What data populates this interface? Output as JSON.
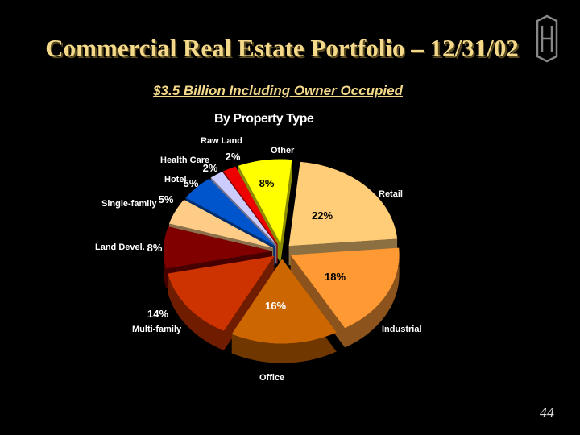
{
  "title": "Commercial Real Estate Portfolio – 12/31/02",
  "subtitle": "$3.5 Billion Including Owner Occupied",
  "page_number": "44",
  "chart_data": {
    "type": "pie",
    "title": "By Property Type",
    "slices": [
      {
        "label": "Retail",
        "value": 22,
        "pct_label": "22%",
        "color": "#FFCC77"
      },
      {
        "label": "Industrial",
        "value": 18,
        "pct_label": "18%",
        "color": "#FF9933"
      },
      {
        "label": "Office",
        "value": 16,
        "pct_label": "16%",
        "color": "#CC6600"
      },
      {
        "label": "Multi-family",
        "value": 14,
        "pct_label": "14%",
        "color": "#CC3300"
      },
      {
        "label": "Land Devel.",
        "value": 8,
        "pct_label": "8%",
        "color": "#800000"
      },
      {
        "label": "Single-family",
        "value": 5,
        "pct_label": "5%",
        "color": "#FFCC88"
      },
      {
        "label": "Hotel",
        "value": 5,
        "pct_label": "5%",
        "color": "#0055CC"
      },
      {
        "label": "Health Care",
        "value": 2,
        "pct_label": "2%",
        "color": "#CCCCFF"
      },
      {
        "label": "Raw Land",
        "value": 2,
        "pct_label": "2%",
        "color": "#EE0000"
      },
      {
        "label": "Other",
        "value": 8,
        "pct_label": "8%",
        "color": "#FFFF00"
      }
    ]
  }
}
